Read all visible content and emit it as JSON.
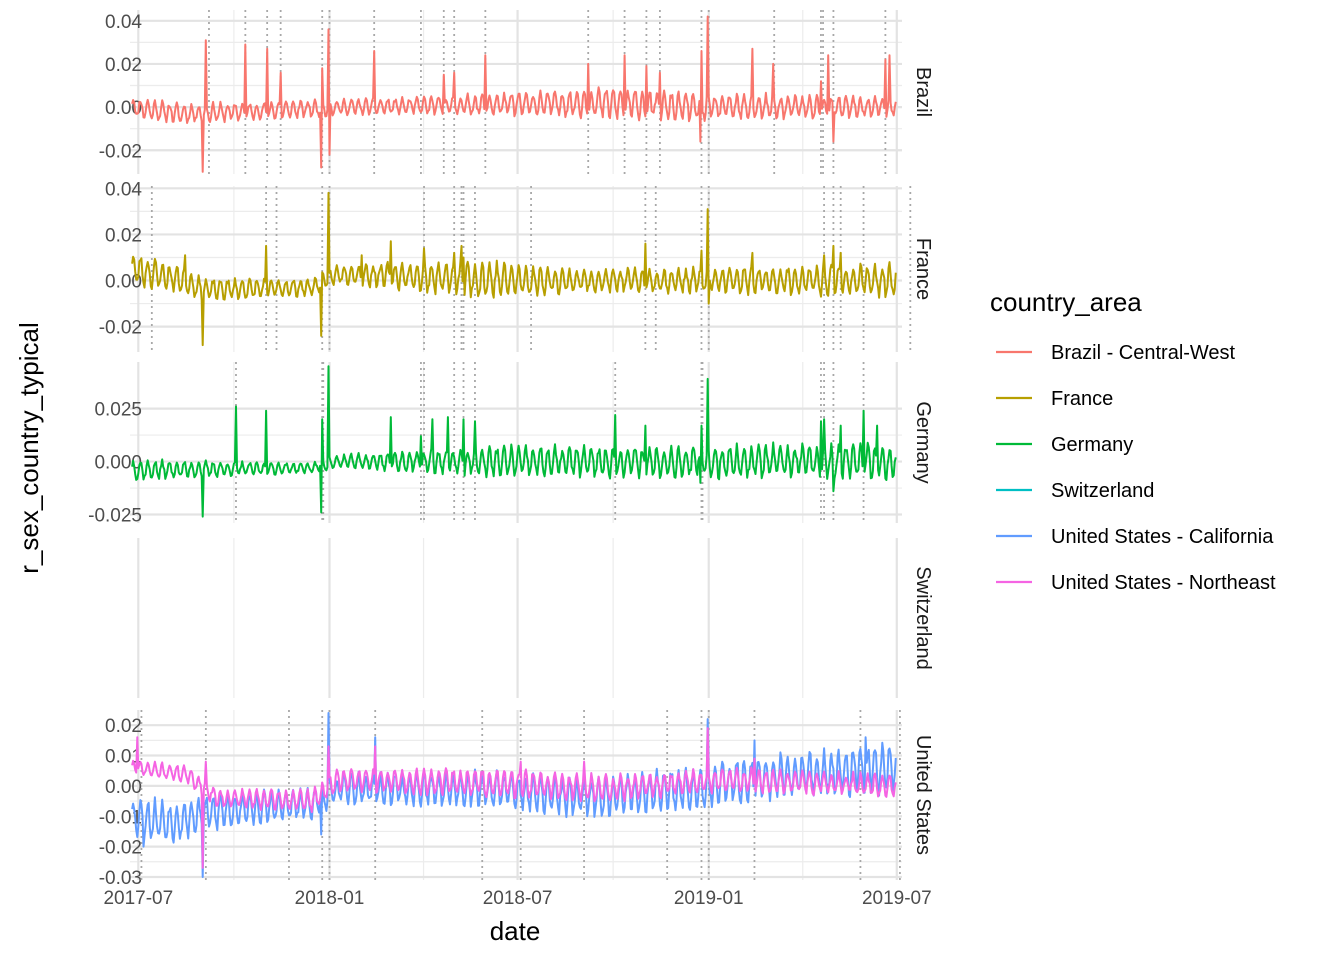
{
  "chart_data": {
    "type": "line",
    "xlabel": "date",
    "ylabel": "r_sex_country_typical",
    "x_range": [
      "2017-06-23",
      "2019-07-06"
    ],
    "x_ticks": [
      "2017-07",
      "2018-01",
      "2018-07",
      "2019-01",
      "2019-07"
    ],
    "grid": true,
    "legend": {
      "title": "country_area",
      "position": "right",
      "entries": [
        {
          "name": "Brazil - Central-West",
          "color": "#F8766D"
        },
        {
          "name": "France",
          "color": "#B79F00"
        },
        {
          "name": "Germany",
          "color": "#00BA38"
        },
        {
          "name": "Switzerland",
          "color": "#00BFC4"
        },
        {
          "name": "United States - California",
          "color": "#619CFF"
        },
        {
          "name": "United States - Northeast",
          "color": "#F564E3"
        }
      ]
    },
    "panels": [
      {
        "strip": "Brazil",
        "ylim": [
          -0.031,
          0.045
        ],
        "yticks": [
          "-0.02",
          "0.00",
          "0.02",
          "0.04"
        ],
        "ytick_values": [
          -0.02,
          0.0,
          0.02,
          0.04
        ],
        "holiday_dates": [
          "2017-09-07",
          "2017-10-12",
          "2017-11-02",
          "2017-11-15",
          "2017-12-25",
          "2018-01-01",
          "2018-02-13",
          "2018-03-30",
          "2018-04-21",
          "2018-05-01",
          "2018-05-31",
          "2018-09-07",
          "2018-10-12",
          "2018-11-02",
          "2018-11-15",
          "2018-12-25",
          "2019-01-01",
          "2019-03-05",
          "2019-04-19",
          "2019-04-21",
          "2019-05-01",
          "2019-06-20"
        ],
        "series": [
          {
            "name": "Brazil - Central-West",
            "color": "#F8766D",
            "base": [
              [
                "2017-06-25",
                0.0
              ],
              [
                "2017-08-10",
                -0.003
              ],
              [
                "2017-10-15",
                -0.002
              ],
              [
                "2018-01-15",
                0.0
              ],
              [
                "2018-09-15",
                0.002
              ],
              [
                "2018-12-15",
                0.0
              ],
              [
                "2019-06-30",
                0.0
              ]
            ],
            "amp": [
              [
                "2017-06-25",
                0.004
              ],
              [
                "2018-03-01",
                0.003
              ],
              [
                "2018-10-01",
                0.006
              ],
              [
                "2019-06-30",
                0.004
              ]
            ],
            "spikes": [
              [
                "2017-09-04",
                0.031
              ],
              [
                "2017-09-01",
                -0.03
              ],
              [
                "2017-10-12",
                0.029
              ],
              [
                "2017-11-02",
                0.027
              ],
              [
                "2017-11-15",
                0.016
              ],
              [
                "2017-12-25",
                0.018
              ],
              [
                "2017-12-24",
                -0.028
              ],
              [
                "2017-12-31",
                0.036
              ],
              [
                "2018-01-01",
                -0.022
              ],
              [
                "2018-02-13",
                0.026
              ],
              [
                "2018-04-21",
                0.015
              ],
              [
                "2018-05-01",
                0.016
              ],
              [
                "2018-05-31",
                0.024
              ],
              [
                "2018-09-07",
                0.02
              ],
              [
                "2018-10-12",
                0.024
              ],
              [
                "2018-11-02",
                0.019
              ],
              [
                "2018-11-15",
                0.016
              ],
              [
                "2018-12-25",
                0.026
              ],
              [
                "2018-12-24",
                -0.016
              ],
              [
                "2018-12-31",
                0.042
              ],
              [
                "2019-02-12",
                0.027
              ],
              [
                "2019-03-04",
                0.02
              ],
              [
                "2019-04-19",
                0.012
              ],
              [
                "2019-04-26",
                0.024
              ],
              [
                "2019-05-01",
                -0.016
              ],
              [
                "2019-06-20",
                0.022
              ],
              [
                "2019-06-24",
                0.024
              ]
            ],
            "seed": 11
          }
        ]
      },
      {
        "strip": "France",
        "ylim": [
          -0.031,
          0.041
        ],
        "yticks": [
          "-0.02",
          "0.00",
          "0.02",
          "0.04"
        ],
        "ytick_values": [
          -0.02,
          0.0,
          0.02,
          0.04
        ],
        "holiday_dates": [
          "2017-07-14",
          "2017-11-01",
          "2017-11-11",
          "2017-12-25",
          "2018-01-01",
          "2018-04-02",
          "2018-05-01",
          "2018-05-08",
          "2018-05-10",
          "2018-05-21",
          "2018-07-14",
          "2018-11-01",
          "2018-11-11",
          "2018-12-25",
          "2019-01-01",
          "2019-04-22",
          "2019-05-01",
          "2019-05-08",
          "2019-05-30",
          "2019-07-14"
        ],
        "series": [
          {
            "name": "France",
            "color": "#B79F00",
            "base": [
              [
                "2017-06-25",
                0.005
              ],
              [
                "2017-08-15",
                0.0
              ],
              [
                "2017-09-01",
                -0.004
              ],
              [
                "2017-12-15",
                -0.003
              ],
              [
                "2018-01-10",
                0.003
              ],
              [
                "2018-07-01",
                0.0
              ],
              [
                "2019-06-30",
                0.0
              ]
            ],
            "amp": [
              [
                "2017-06-25",
                0.006
              ],
              [
                "2017-09-01",
                0.004
              ],
              [
                "2017-12-15",
                0.003
              ],
              [
                "2018-06-01",
                0.007
              ],
              [
                "2018-09-01",
                0.004
              ],
              [
                "2019-06-30",
                0.006
              ]
            ],
            "spikes": [
              [
                "2017-09-01",
                -0.028
              ],
              [
                "2017-08-15",
                0.011
              ],
              [
                "2017-11-01",
                0.015
              ],
              [
                "2017-12-24",
                -0.024
              ],
              [
                "2017-12-31",
                0.038
              ],
              [
                "2018-02-01",
                0.011
              ],
              [
                "2018-03-01",
                0.017
              ],
              [
                "2018-04-02",
                0.014
              ],
              [
                "2018-05-01",
                0.012
              ],
              [
                "2018-05-08",
                0.015
              ],
              [
                "2018-05-10",
                0.01
              ],
              [
                "2018-11-01",
                0.016
              ],
              [
                "2018-12-25",
                0.013
              ],
              [
                "2018-12-31",
                0.031
              ],
              [
                "2019-01-01",
                -0.01
              ],
              [
                "2019-02-12",
                0.012
              ],
              [
                "2019-04-22",
                0.011
              ],
              [
                "2019-05-01",
                0.015
              ],
              [
                "2019-05-08",
                0.012
              ]
            ],
            "seed": 23
          }
        ]
      },
      {
        "strip": "Germany",
        "ylim": [
          -0.029,
          0.047
        ],
        "yticks": [
          "-0.025",
          "0.000",
          "0.025"
        ],
        "ytick_values": [
          -0.025,
          0.0,
          0.025
        ],
        "holiday_dates": [
          "2017-10-03",
          "2017-12-25",
          "2017-12-26",
          "2018-03-30",
          "2018-04-02",
          "2018-05-01",
          "2018-05-10",
          "2018-05-21",
          "2018-10-03",
          "2018-12-25",
          "2018-12-26",
          "2019-04-19",
          "2019-04-22",
          "2019-05-01",
          "2019-05-30"
        ],
        "series": [
          {
            "name": "Germany",
            "color": "#00BA38",
            "base": [
              [
                "2017-06-25",
                -0.004
              ],
              [
                "2017-12-15",
                -0.003
              ],
              [
                "2018-01-10",
                0.0
              ],
              [
                "2018-06-01",
                0.0
              ],
              [
                "2019-06-30",
                0.0
              ]
            ],
            "amp": [
              [
                "2017-06-25",
                0.004
              ],
              [
                "2017-12-15",
                0.002
              ],
              [
                "2018-06-01",
                0.006
              ],
              [
                "2019-06-30",
                0.007
              ]
            ],
            "spikes": [
              [
                "2017-09-01",
                -0.026
              ],
              [
                "2017-10-03",
                0.026
              ],
              [
                "2017-11-01",
                0.024
              ],
              [
                "2017-12-24",
                -0.024
              ],
              [
                "2017-12-25",
                0.02
              ],
              [
                "2017-12-31",
                0.045
              ],
              [
                "2018-03-01",
                0.021
              ],
              [
                "2018-03-30",
                0.012
              ],
              [
                "2018-04-10",
                0.02
              ],
              [
                "2018-04-25",
                0.021
              ],
              [
                "2018-05-10",
                0.02
              ],
              [
                "2018-05-21",
                0.019
              ],
              [
                "2018-10-03",
                0.022
              ],
              [
                "2018-11-01",
                0.017
              ],
              [
                "2018-12-24",
                -0.01
              ],
              [
                "2018-12-25",
                0.017
              ],
              [
                "2018-12-31",
                0.039
              ],
              [
                "2019-04-19",
                0.019
              ],
              [
                "2019-04-22",
                0.02
              ],
              [
                "2019-05-01",
                -0.014
              ],
              [
                "2019-05-08",
                0.017
              ],
              [
                "2019-05-30",
                0.024
              ],
              [
                "2019-06-12",
                0.017
              ]
            ],
            "seed": 37
          }
        ]
      },
      {
        "strip": "Switzerland",
        "ylim": [
          -0.01,
          0.01
        ],
        "yticks": [],
        "ytick_values": [],
        "holiday_dates": [],
        "series": []
      },
      {
        "strip": "United States",
        "ylim": [
          -0.031,
          0.025
        ],
        "yticks": [
          "-0.03",
          "-0.02",
          "-0.01",
          "0.00",
          "0.01",
          "0.02"
        ],
        "ytick_values": [
          -0.03,
          -0.02,
          -0.01,
          0.0,
          0.01,
          0.02
        ],
        "holiday_dates": [
          "2017-07-04",
          "2017-09-04",
          "2017-11-23",
          "2017-12-25",
          "2018-01-01",
          "2018-02-14",
          "2018-05-28",
          "2018-07-04",
          "2018-09-03",
          "2018-11-22",
          "2018-12-25",
          "2019-01-01",
          "2019-02-14",
          "2019-05-27",
          "2019-07-04"
        ],
        "series": [
          {
            "name": "United States - California",
            "color": "#619CFF",
            "base": [
              [
                "2017-06-25",
                -0.01
              ],
              [
                "2017-08-01",
                -0.012
              ],
              [
                "2017-09-20",
                -0.008
              ],
              [
                "2017-12-15",
                -0.006
              ],
              [
                "2018-01-10",
                -0.001
              ],
              [
                "2018-06-01",
                -0.001
              ],
              [
                "2018-09-01",
                -0.004
              ],
              [
                "2019-01-01",
                0.0
              ],
              [
                "2019-03-01",
                0.003
              ],
              [
                "2019-06-30",
                0.006
              ]
            ],
            "amp": [
              [
                "2017-06-25",
                0.006
              ],
              [
                "2017-12-15",
                0.004
              ],
              [
                "2018-06-01",
                0.005
              ],
              [
                "2019-06-30",
                0.007
              ]
            ],
            "spikes": [
              [
                "2017-07-06",
                -0.02
              ],
              [
                "2017-09-01",
                -0.03
              ],
              [
                "2017-12-24",
                -0.016
              ],
              [
                "2017-12-31",
                0.024
              ],
              [
                "2018-02-14",
                0.016
              ],
              [
                "2018-12-31",
                0.022
              ],
              [
                "2019-02-14",
                0.015
              ],
              [
                "2019-06-01",
                0.016
              ]
            ],
            "seed": 53
          },
          {
            "name": "United States - Northeast",
            "color": "#F564E3",
            "base": [
              [
                "2017-06-25",
                0.006
              ],
              [
                "2017-08-15",
                0.004
              ],
              [
                "2017-09-15",
                -0.004
              ],
              [
                "2017-12-15",
                -0.005
              ],
              [
                "2018-01-10",
                0.002
              ],
              [
                "2018-06-01",
                0.001
              ],
              [
                "2018-10-01",
                -0.001
              ],
              [
                "2019-01-15",
                0.002
              ],
              [
                "2019-06-30",
                0.0
              ]
            ],
            "amp": [
              [
                "2017-06-25",
                0.002
              ],
              [
                "2017-12-15",
                0.003
              ],
              [
                "2018-06-01",
                0.004
              ],
              [
                "2019-06-30",
                0.003
              ]
            ],
            "spikes": [
              [
                "2017-06-30",
                0.016
              ],
              [
                "2017-09-04",
                0.008
              ],
              [
                "2017-09-01",
                -0.027
              ],
              [
                "2017-12-31",
                0.013
              ],
              [
                "2018-02-14",
                0.013
              ],
              [
                "2018-07-04",
                0.008
              ],
              [
                "2018-09-03",
                0.008
              ],
              [
                "2018-12-31",
                0.019
              ],
              [
                "2019-02-14",
                0.009
              ]
            ],
            "seed": 71
          }
        ]
      }
    ]
  }
}
